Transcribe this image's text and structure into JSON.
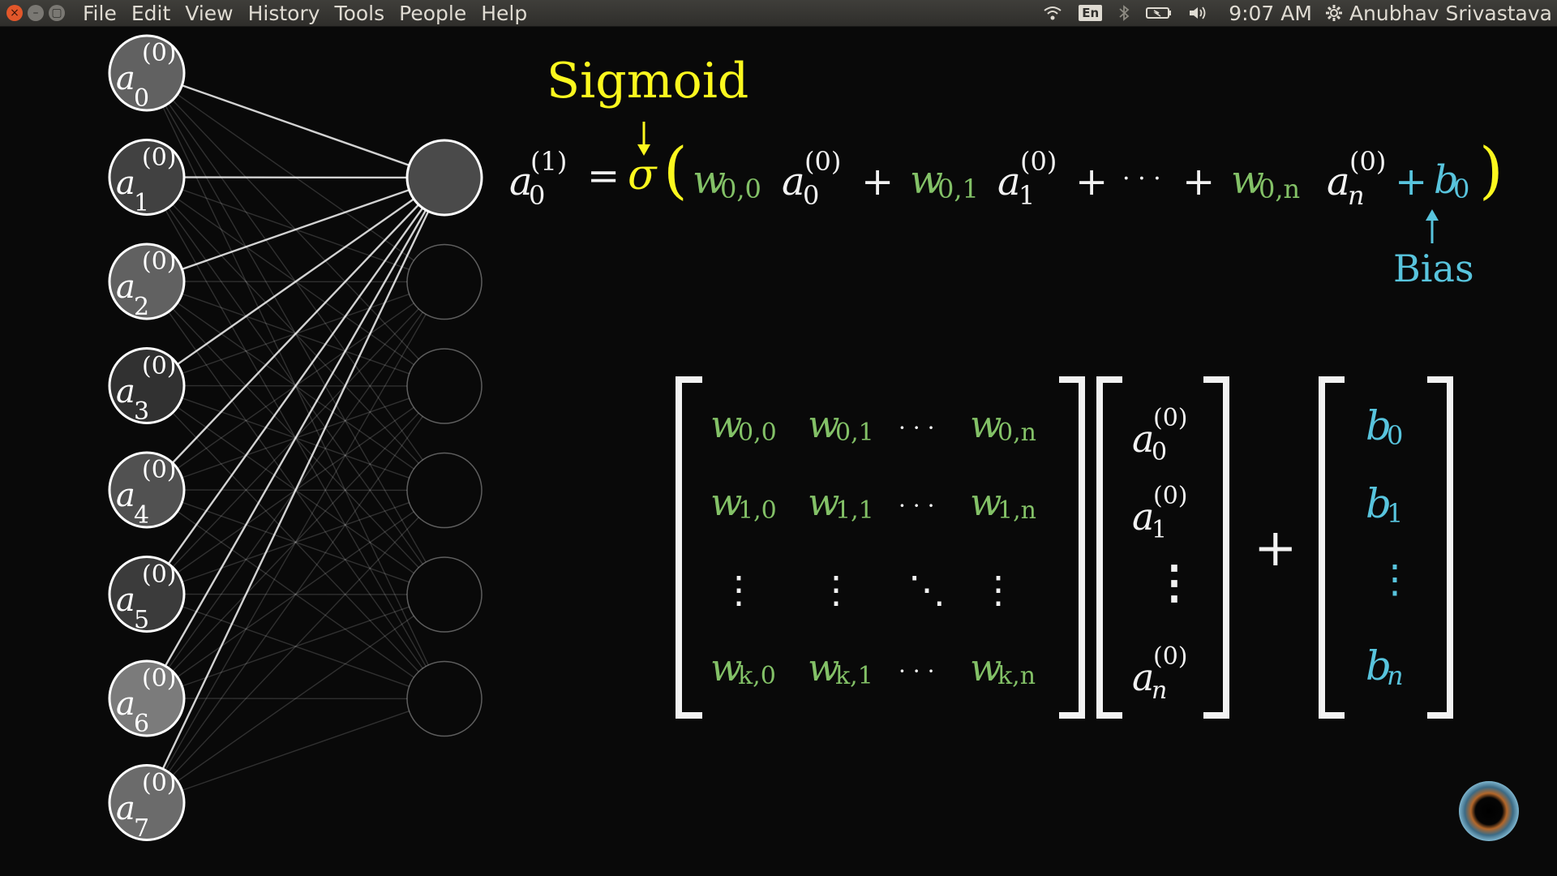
{
  "window_controls": {
    "close": "×",
    "minimize": "–",
    "maximize": "▢"
  },
  "menu": [
    "File",
    "Edit",
    "View",
    "History",
    "Tools",
    "People",
    "Help"
  ],
  "indicators": {
    "wifi_icon": "wifi-icon",
    "keyboard_layout": "En",
    "bluetooth_icon": "bluetooth-icon",
    "battery_icon": "battery-icon",
    "volume_icon": "volume-icon",
    "clock": "9:07 AM",
    "settings_icon": "gear-icon",
    "user": "Anubhav Srivastava"
  },
  "network": {
    "input_layer": [
      {
        "base": "a",
        "sup": "(0)",
        "sub": "0"
      },
      {
        "base": "a",
        "sup": "(0)",
        "sub": "1"
      },
      {
        "base": "a",
        "sup": "(0)",
        "sub": "2"
      },
      {
        "base": "a",
        "sup": "(0)",
        "sub": "3"
      },
      {
        "base": "a",
        "sup": "(0)",
        "sub": "4"
      },
      {
        "base": "a",
        "sup": "(0)",
        "sub": "5"
      },
      {
        "base": "a",
        "sup": "(0)",
        "sub": "6"
      },
      {
        "base": "a",
        "sup": "(0)",
        "sub": "7"
      }
    ],
    "input_activations": [
      0.42,
      0.22,
      0.42,
      0.12,
      0.32,
      0.18,
      0.58,
      0.48
    ],
    "output_node_count": 6,
    "highlighted_output": 0
  },
  "equation": {
    "sigmoid_label": "Sigmoid",
    "bias_label": "Bias",
    "lhs_base": "a",
    "lhs_sup": "(1)",
    "lhs_sub": "0",
    "equals": "=",
    "sigma": "σ",
    "open_paren": "(",
    "close_paren": ")",
    "plus": "+",
    "dots": "· · ·",
    "terms": [
      {
        "w": "w",
        "w_sub": "0,0",
        "a": "a",
        "a_sup": "(0)",
        "a_sub": "0"
      },
      {
        "w": "w",
        "w_sub": "0,1",
        "a": "a",
        "a_sup": "(0)",
        "a_sub": "1"
      },
      {
        "w": "w",
        "w_sub": "0,n",
        "a": "a",
        "a_sup": "(0)",
        "a_sub": "n"
      }
    ],
    "bias": {
      "base": "b",
      "sub": "0"
    }
  },
  "weight_matrix": {
    "rows": [
      [
        "0,0",
        "0,1",
        "· · ·",
        "0,n"
      ],
      [
        "1,0",
        "1,1",
        "· · ·",
        "1,n"
      ],
      [
        "⋮",
        "⋮",
        "⋱",
        "⋮"
      ],
      [
        "k,0",
        "k,1",
        "· · ·",
        "k,n"
      ]
    ],
    "entry_base": "w"
  },
  "activation_vector": {
    "base": "a",
    "sup": "(0)",
    "subs": [
      "0",
      "1",
      "⋮",
      "n"
    ]
  },
  "plus_sign": "+",
  "bias_vector": {
    "base": "b",
    "subs": [
      "0",
      "1",
      "⋮",
      "n"
    ]
  },
  "colors": {
    "weights": "#83c167",
    "bias": "#58c4dd",
    "sigmoid": "#fcf81e",
    "background": "#090909"
  },
  "overlay_icon": "webcam-eye-icon"
}
